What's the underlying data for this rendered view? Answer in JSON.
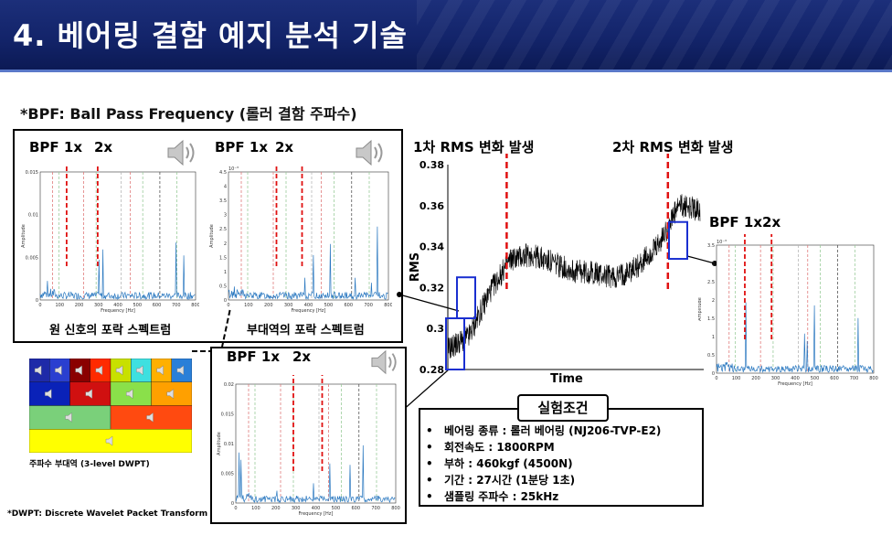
{
  "header": {
    "title": "4. 베어링 결함 예지 분석 기술"
  },
  "subtitle": "*BPF: Ball Pass Frequency (롤러 결함 주파수)",
  "panels": {
    "left": {
      "bpf_label": "BPF 1x",
      "x2_label": "2x",
      "caption": "원 신호의 포락 스펙트럼",
      "ylabel": "Amplitude",
      "xlabel": "Frequency [Hz]",
      "yticks": [
        "0",
        "0.005",
        "0.01",
        "0.015"
      ],
      "xticks": [
        "0",
        "100",
        "200",
        "300",
        "400",
        "500",
        "600",
        "700",
        "800"
      ]
    },
    "mid": {
      "bpf_label": "BPF 1x",
      "x2_label": "2x",
      "caption": "부대역의 포락 스펙트럼",
      "ylabel": "Amplitude",
      "xlabel": "Frequency [Hz]",
      "exponent": "10⁻³",
      "yticks": [
        "0",
        "0.5",
        "1",
        "1.5",
        "2",
        "2.5",
        "3",
        "3.5",
        "4",
        "4.5"
      ],
      "xticks": [
        "0",
        "100",
        "200",
        "300",
        "400",
        "500",
        "600",
        "700",
        "800"
      ]
    },
    "bottom": {
      "bpf_label": "BPF 1x",
      "x2_label": "2x",
      "ylabel": "Amplitude",
      "xlabel": "Frequency [Hz]",
      "yticks": [
        "0",
        "0.005",
        "0.01",
        "0.015",
        "0.02"
      ],
      "xticks": [
        "0",
        "100",
        "200",
        "300",
        "400",
        "500",
        "600",
        "700",
        "800"
      ]
    },
    "right": {
      "bpf_label": "BPF 1x2x",
      "ylabel": "Amplitude",
      "xlabel": "Frequency [Hz]",
      "exponent": "10⁻³",
      "yticks": [
        "0",
        "0.5",
        "1",
        "1.5",
        "2",
        "2.5",
        "3",
        "3.5"
      ],
      "xticks": [
        "0",
        "100",
        "200",
        "300",
        "400",
        "500",
        "600",
        "700",
        "800"
      ]
    }
  },
  "wavelet": {
    "caption": "주파수 부대역 (3-level DWPT)"
  },
  "footnote": "*DWPT: Discrete Wavelet Packet Transform",
  "rms_chart": {
    "event1": "1차 RMS 변화 발생",
    "event2": "2차 RMS 변화 발생",
    "ylabel": "RMS",
    "xlabel": "Time",
    "yticks": [
      "0.28",
      "0.3",
      "0.32",
      "0.34",
      "0.36",
      "0.38"
    ]
  },
  "conditions": {
    "title": "실험조건",
    "items": [
      "베어링 종류 : 롤러 베어링 (NJ206-TVP-E2)",
      "회전속도 : 1800RPM",
      "부하 : 460kgf (4500N)",
      "기간 : 27시간 (1분당 1초)",
      "샘플링 주파수 : 25kHz"
    ]
  },
  "chart_data": {
    "type": "line",
    "xlabel": "Time",
    "ylabel": "RMS",
    "ylim": [
      0.28,
      0.38
    ],
    "yticks": [
      0.28,
      0.3,
      0.32,
      0.34,
      0.36,
      0.38
    ],
    "annotations": [
      "1차 RMS 변화 발생",
      "2차 RMS 변화 발생"
    ],
    "trend": [
      0.29,
      0.296,
      0.318,
      0.334,
      0.336,
      0.332,
      0.328,
      0.327,
      0.325,
      0.33,
      0.34,
      0.36,
      0.358
    ]
  }
}
